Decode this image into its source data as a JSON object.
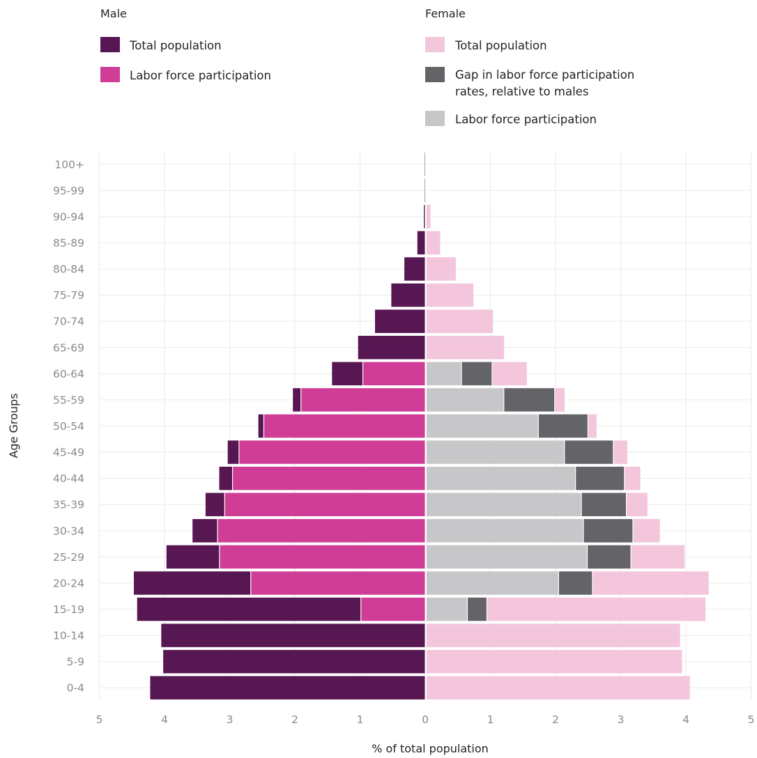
{
  "legend": {
    "male_heading": "Male",
    "female_heading": "Female",
    "male_items": [
      {
        "label": "Total population",
        "color": "#571752"
      },
      {
        "label": "Labor force participation",
        "color": "#cf3d96"
      }
    ],
    "female_items": [
      {
        "label": "Total population",
        "color": "#f3c6dc"
      },
      {
        "label_lines": [
          "Gap in labor force participation",
          "rates, relative to males"
        ],
        "color": "#646468"
      },
      {
        "label": "Labor force participation",
        "color": "#c7c7c9"
      }
    ]
  },
  "chart_data": {
    "type": "bar",
    "orientation": "horizontal",
    "layout": "population-pyramid",
    "categories": [
      "100+",
      "95-99",
      "90-94",
      "85-89",
      "80-84",
      "75-79",
      "70-74",
      "65-69",
      "60-64",
      "55-59",
      "50-54",
      "45-49",
      "40-44",
      "35-39",
      "30-34",
      "25-29",
      "20-24",
      "15-19",
      "10-14",
      "5-9",
      "0-4"
    ],
    "xlabel": "% of total population",
    "ylabel": "Age Groups",
    "xlim": [
      -5,
      5
    ],
    "xticks": [
      {
        "value": -5,
        "label": "5"
      },
      {
        "value": -4,
        "label": "4"
      },
      {
        "value": -3,
        "label": "3"
      },
      {
        "value": -2,
        "label": "2"
      },
      {
        "value": -1,
        "label": "1"
      },
      {
        "value": 0,
        "label": "0"
      },
      {
        "value": 1,
        "label": "1"
      },
      {
        "value": 2,
        "label": "2"
      },
      {
        "value": 3,
        "label": "3"
      },
      {
        "value": 4,
        "label": "4"
      },
      {
        "value": 5,
        "label": "5"
      }
    ],
    "grid": true,
    "series": [
      {
        "side": "male",
        "name": "Total population",
        "color": "#571752",
        "values": [
          0.01,
          0.01,
          0.02,
          0.12,
          0.32,
          0.52,
          0.77,
          1.03,
          1.43,
          2.03,
          2.56,
          3.03,
          3.16,
          3.37,
          3.57,
          3.97,
          4.47,
          4.42,
          4.05,
          4.02,
          4.22
        ]
      },
      {
        "side": "male",
        "name": "Labor force participation",
        "color": "#cf3d96",
        "values": [
          0,
          0,
          0,
          0,
          0,
          0,
          0,
          0,
          0.95,
          1.9,
          2.47,
          2.85,
          2.95,
          3.07,
          3.18,
          3.15,
          2.67,
          0.98,
          0,
          0,
          0
        ]
      },
      {
        "side": "female",
        "name": "Total population",
        "color": "#f3c6dc",
        "values": [
          0.01,
          0.01,
          0.08,
          0.23,
          0.47,
          0.74,
          1.04,
          1.21,
          1.56,
          2.14,
          2.63,
          3.1,
          3.3,
          3.41,
          3.6,
          3.98,
          4.35,
          4.3,
          3.91,
          3.94,
          4.06
        ]
      },
      {
        "side": "female",
        "name": "Gap in labor force participation rates, relative to males",
        "color": "#646468",
        "values": [
          0,
          0,
          0,
          0,
          0,
          0,
          0,
          0,
          0.47,
          0.78,
          0.76,
          0.75,
          0.75,
          0.69,
          0.76,
          0.67,
          0.52,
          0.3,
          0,
          0,
          0
        ]
      },
      {
        "side": "female",
        "name": "Labor force participation",
        "color": "#c7c7c9",
        "values": [
          0,
          0,
          0,
          0,
          0,
          0,
          0,
          0,
          0.55,
          1.2,
          1.73,
          2.13,
          2.3,
          2.39,
          2.42,
          2.48,
          2.04,
          0.64,
          0,
          0,
          0
        ]
      }
    ]
  }
}
